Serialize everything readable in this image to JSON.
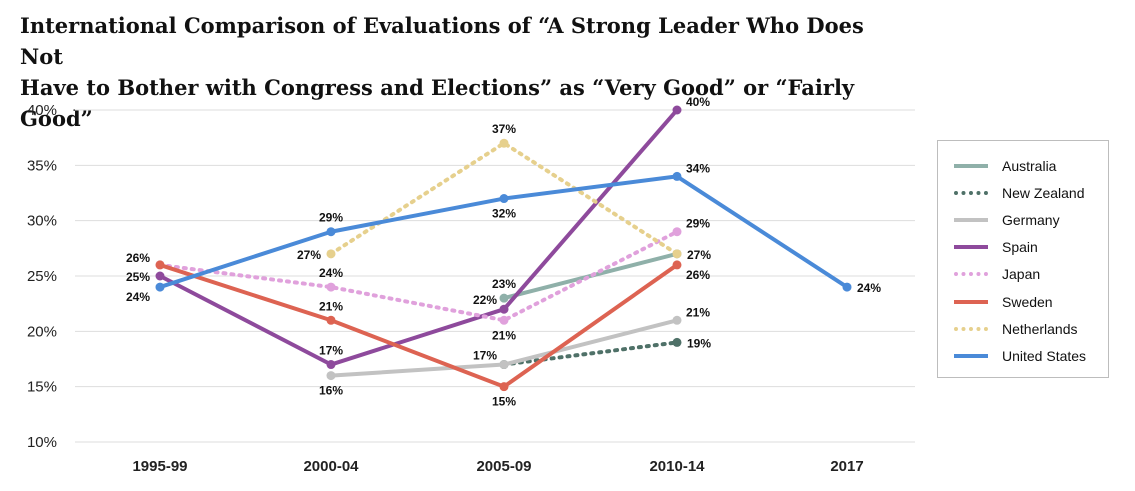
{
  "chart_data": {
    "type": "line",
    "title_lines": [
      "International Comparison of Evaluations of “A Strong Leader Who Does Not",
      "Have to Bother with Congress and Elections” as “Very Good” or “Fairly Good”"
    ],
    "categories": [
      "1995-99",
      "2000-04",
      "2005-09",
      "2010-14",
      "2017"
    ],
    "yticks": [
      "40%",
      "35%",
      "30%",
      "25%",
      "20%",
      "15%",
      "10%"
    ],
    "ylim": [
      10,
      40
    ],
    "grid": true,
    "legend_position": "right",
    "series": [
      {
        "name": "Australia",
        "color": "#8fb0a9",
        "dash": "solid",
        "values": [
          null,
          null,
          23,
          27,
          null
        ]
      },
      {
        "name": "New Zealand",
        "color": "#4f7168",
        "dash": "dotted",
        "values": [
          null,
          null,
          17,
          19,
          null
        ]
      },
      {
        "name": "Germany",
        "color": "#c2c2c2",
        "dash": "solid",
        "values": [
          null,
          16,
          17,
          21,
          null
        ]
      },
      {
        "name": "Spain",
        "color": "#8e4a9c",
        "dash": "solid",
        "values": [
          25,
          17,
          22,
          40,
          null
        ]
      },
      {
        "name": "Japan",
        "color": "#e0a1dc",
        "dash": "dotted",
        "values": [
          26,
          24,
          21,
          29,
          null
        ]
      },
      {
        "name": "Sweden",
        "color": "#dd6352",
        "dash": "solid",
        "values": [
          26,
          21,
          15,
          26,
          null
        ]
      },
      {
        "name": "Netherlands",
        "color": "#e6d08d",
        "dash": "dotted",
        "values": [
          null,
          27,
          37,
          27,
          null
        ]
      },
      {
        "name": "United States",
        "color": "#4a8ad8",
        "dash": "solid",
        "values": [
          24,
          29,
          32,
          34,
          24
        ]
      }
    ],
    "data_labels": [
      {
        "text": "26%",
        "x": 0,
        "y": 26,
        "pos": "left-above"
      },
      {
        "text": "25%",
        "x": 0,
        "y": 25,
        "pos": "left"
      },
      {
        "text": "24%",
        "x": 0,
        "y": 24,
        "pos": "left-below"
      },
      {
        "text": "29%",
        "x": 1,
        "y": 29,
        "pos": "above"
      },
      {
        "text": "27%",
        "x": 1,
        "y": 27,
        "pos": "left"
      },
      {
        "text": "24%",
        "x": 1,
        "y": 24,
        "pos": "above"
      },
      {
        "text": "21%",
        "x": 1,
        "y": 21,
        "pos": "above"
      },
      {
        "text": "17%",
        "x": 1,
        "y": 17,
        "pos": "above"
      },
      {
        "text": "16%",
        "x": 1,
        "y": 16,
        "pos": "below"
      },
      {
        "text": "37%",
        "x": 2,
        "y": 37,
        "pos": "above"
      },
      {
        "text": "32%",
        "x": 2,
        "y": 32,
        "pos": "below"
      },
      {
        "text": "23%",
        "x": 2,
        "y": 23,
        "pos": "above"
      },
      {
        "text": "22%",
        "x": 2,
        "y": 22,
        "pos": "left-up"
      },
      {
        "text": "21%",
        "x": 2,
        "y": 21,
        "pos": "below"
      },
      {
        "text": "17%",
        "x": 2,
        "y": 17,
        "pos": "left-up"
      },
      {
        "text": "15%",
        "x": 2,
        "y": 15,
        "pos": "below"
      },
      {
        "text": "40%",
        "x": 3,
        "y": 40,
        "pos": "right-up"
      },
      {
        "text": "34%",
        "x": 3,
        "y": 34,
        "pos": "right-up"
      },
      {
        "text": "29%",
        "x": 3,
        "y": 29,
        "pos": "right-up"
      },
      {
        "text": "27%",
        "x": 3,
        "y": 27,
        "pos": "right"
      },
      {
        "text": "26%",
        "x": 3,
        "y": 26,
        "pos": "right-down"
      },
      {
        "text": "21%",
        "x": 3,
        "y": 21,
        "pos": "right-up"
      },
      {
        "text": "19%",
        "x": 3,
        "y": 19,
        "pos": "right"
      },
      {
        "text": "24%",
        "x": 4,
        "y": 24,
        "pos": "right"
      }
    ]
  }
}
